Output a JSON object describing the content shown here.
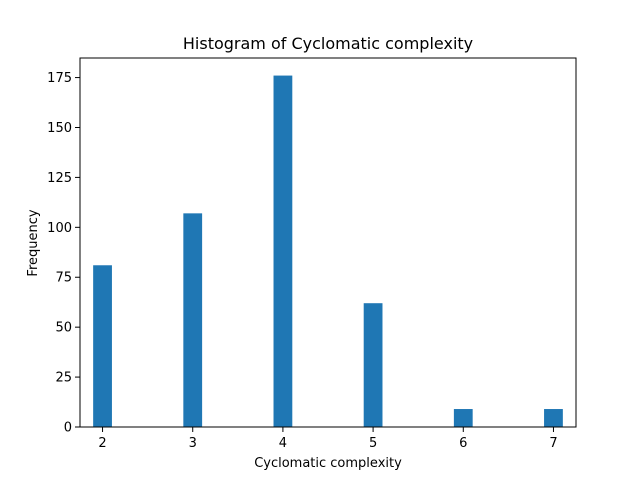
{
  "chart_data": {
    "type": "bar",
    "title": "Histogram of Cyclomatic complexity",
    "xlabel": "Cyclomatic complexity",
    "ylabel": "Frequency",
    "x": [
      2,
      3,
      4,
      5,
      6,
      7
    ],
    "values": [
      81,
      107,
      176,
      62,
      9,
      9
    ],
    "bin_width": 0.2083,
    "xlim": [
      1.75,
      7.25
    ],
    "ylim": [
      0,
      184.8
    ],
    "xticks": [
      2,
      3,
      4,
      5,
      6,
      7
    ],
    "xtick_labels": [
      "2",
      "3",
      "4",
      "5",
      "6",
      "7"
    ],
    "yticks": [
      0,
      25,
      50,
      75,
      100,
      125,
      150,
      175
    ],
    "ytick_labels": [
      "0",
      "25",
      "50",
      "75",
      "100",
      "125",
      "150",
      "175"
    ],
    "grid": false,
    "bar_color": "#1f77b4"
  }
}
